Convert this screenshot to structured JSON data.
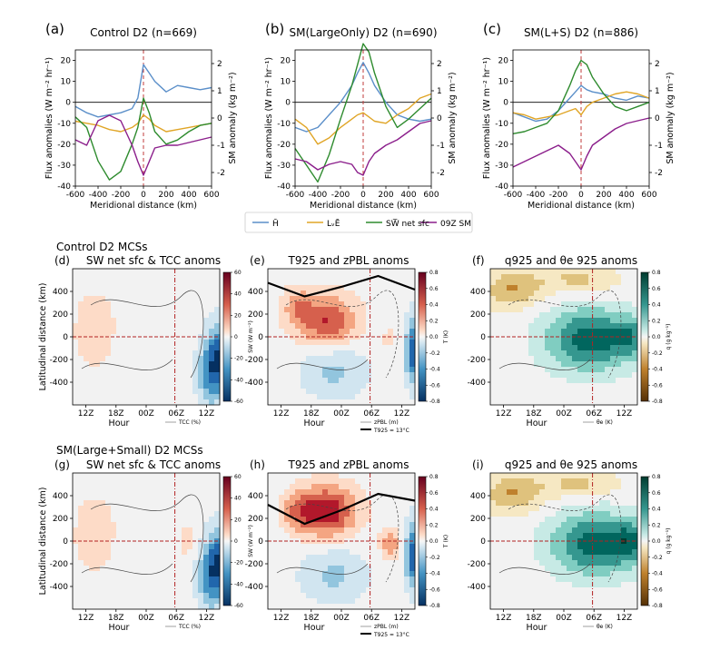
{
  "figure": {
    "row_titles": [
      "Control D2 MCSs",
      "SM(Large+Small) D2 MCSs"
    ],
    "legend": [
      {
        "label": "H̄",
        "color": "#5b8fc9"
      },
      {
        "label": "LᵥĒ",
        "color": "#e0a526"
      },
      {
        "label": "SW̅ net sfc",
        "color": "#2e8b2e"
      },
      {
        "label": "09Z SM",
        "color": "#8b1e8b"
      }
    ]
  },
  "chart_data": [
    {
      "type": "line",
      "panel": "(a)",
      "title": "Control D2 (n=669)",
      "xlabel": "Meridional distance (km)",
      "ylabel": "Flux anomalies (W m⁻² hr⁻¹)",
      "ylabel_right": "SM anomaly (kg m⁻²)",
      "xlim": [
        -600,
        600
      ],
      "ylim": [
        -40,
        25
      ],
      "ylim_right": [
        -2.5,
        2.5
      ],
      "xticks": [
        -600,
        -400,
        -200,
        0,
        200,
        400,
        600
      ],
      "yticks": [
        -40,
        -30,
        -20,
        -10,
        0,
        10,
        20
      ],
      "yticks_right": [
        -2,
        -1,
        0,
        1,
        2
      ],
      "x": [
        -600,
        -500,
        -400,
        -300,
        -200,
        -100,
        -50,
        0,
        50,
        100,
        200,
        300,
        400,
        500,
        600
      ],
      "series": [
        {
          "name": "H",
          "color": "#5b8fc9",
          "values": [
            -2,
            -5,
            -7,
            -6,
            -5,
            -3,
            2,
            18,
            14,
            10,
            5,
            8,
            7,
            6,
            7
          ]
        },
        {
          "name": "LvE",
          "color": "#e0a526",
          "values": [
            -9,
            -10,
            -11,
            -13,
            -14,
            -12,
            -10,
            -6,
            -8,
            -11,
            -14,
            -13,
            -12,
            -11,
            -10
          ]
        },
        {
          "name": "SWnet",
          "color": "#2e8b2e",
          "values": [
            -7,
            -12,
            -28,
            -37,
            -33,
            -20,
            -12,
            2,
            -5,
            -14,
            -20,
            -18,
            -14,
            -11,
            -10
          ]
        },
        {
          "name": "09Z SM",
          "color": "#8b1e8b",
          "values": [
            -0.8,
            -1.0,
            -0.1,
            0.1,
            -0.1,
            -1.0,
            -1.6,
            -2.1,
            -1.6,
            -1.1,
            -1.0,
            -1.0,
            -0.9,
            -0.8,
            -0.7
          ]
        }
      ]
    },
    {
      "type": "line",
      "panel": "(b)",
      "title": "SM(LargeOnly) D2 (n=690)",
      "xlabel": "Meridional distance (km)",
      "ylabel": "Flux anomalies (W m⁻² hr⁻¹)",
      "ylabel_right": "SM anomaly (kg m⁻²)",
      "xlim": [
        -600,
        600
      ],
      "ylim": [
        -40,
        25
      ],
      "ylim_right": [
        -2.5,
        2.5
      ],
      "xticks": [
        -600,
        -400,
        -200,
        0,
        200,
        400,
        600
      ],
      "yticks": [
        -40,
        -30,
        -20,
        -10,
        0,
        10,
        20
      ],
      "yticks_right": [
        -2,
        -1,
        0,
        1,
        2
      ],
      "x": [
        -600,
        -500,
        -400,
        -300,
        -200,
        -100,
        -50,
        0,
        50,
        100,
        200,
        300,
        400,
        500,
        600
      ],
      "series": [
        {
          "name": "H",
          "color": "#5b8fc9",
          "values": [
            -12,
            -14,
            -12,
            -6,
            0,
            8,
            14,
            19,
            14,
            8,
            0,
            -6,
            -8,
            -9,
            -8
          ]
        },
        {
          "name": "LvE",
          "color": "#e0a526",
          "values": [
            -8,
            -12,
            -20,
            -17,
            -12,
            -8,
            -6,
            -5,
            -7,
            -9,
            -10,
            -6,
            -3,
            2,
            4
          ]
        },
        {
          "name": "SWnet",
          "color": "#2e8b2e",
          "values": [
            -22,
            -30,
            -38,
            -25,
            -8,
            8,
            18,
            28,
            24,
            14,
            -2,
            -12,
            -8,
            -3,
            2
          ]
        },
        {
          "name": "09Z SM",
          "color": "#8b1e8b",
          "values": [
            -1.5,
            -1.6,
            -1.9,
            -1.7,
            -1.6,
            -1.7,
            -2.0,
            -2.1,
            -1.6,
            -1.3,
            -1.0,
            -0.8,
            -0.5,
            -0.2,
            -0.1
          ]
        }
      ]
    },
    {
      "type": "line",
      "panel": "(c)",
      "title": "SM(L+S) D2 (n=886)",
      "xlabel": "Meridional distance (km)",
      "ylabel": "Flux anomalies (W m⁻² hr⁻¹)",
      "ylabel_right": "SM anomaly (kg m⁻²)",
      "xlim": [
        -600,
        600
      ],
      "ylim": [
        -40,
        25
      ],
      "ylim_right": [
        -2.5,
        2.5
      ],
      "xticks": [
        -600,
        -400,
        -200,
        0,
        200,
        400,
        600
      ],
      "yticks": [
        -40,
        -30,
        -20,
        -10,
        0,
        10,
        20
      ],
      "yticks_right": [
        -2,
        -1,
        0,
        1,
        2
      ],
      "x": [
        -600,
        -500,
        -400,
        -300,
        -200,
        -100,
        -50,
        0,
        50,
        100,
        200,
        300,
        400,
        500,
        600
      ],
      "series": [
        {
          "name": "H",
          "color": "#5b8fc9",
          "values": [
            -5,
            -7,
            -9,
            -8,
            -4,
            2,
            5,
            8,
            6,
            5,
            4,
            2,
            1,
            3,
            2
          ]
        },
        {
          "name": "LvE",
          "color": "#e0a526",
          "values": [
            -5,
            -6,
            -8,
            -7,
            -6,
            -4,
            -3,
            -6,
            -2,
            0,
            2,
            4,
            5,
            4,
            2
          ]
        },
        {
          "name": "SWnet",
          "color": "#2e8b2e",
          "values": [
            -15,
            -14,
            -12,
            -10,
            -4,
            8,
            15,
            20,
            18,
            12,
            4,
            -2,
            -4,
            -2,
            0
          ]
        },
        {
          "name": "09Z SM",
          "color": "#8b1e8b",
          "values": [
            -1.8,
            -1.6,
            -1.4,
            -1.2,
            -1.0,
            -1.3,
            -1.6,
            -1.9,
            -1.4,
            -1.0,
            -0.7,
            -0.4,
            -0.2,
            -0.1,
            0.0
          ]
        }
      ]
    },
    {
      "type": "heatmap",
      "panel": "(d)",
      "title": "SW net sfc & TCC anoms",
      "xlabel": "Hour",
      "ylabel": "Latitudinal distance (km)",
      "xticks": [
        "12Z",
        "18Z",
        "00Z",
        "06Z",
        "12Z"
      ],
      "yticks": [
        -400,
        -200,
        0,
        200,
        400
      ],
      "ylim": [
        -600,
        600
      ],
      "xlim_hours": [
        -30,
        0
      ],
      "colorbar": {
        "label": "SW (W m⁻²)",
        "ticks": [
          -60,
          -40,
          -20,
          0,
          20,
          40,
          60
        ],
        "range": [
          -60,
          60
        ],
        "cmap": "RdBu"
      },
      "contour_legend": "TCC (%)"
    },
    {
      "type": "heatmap",
      "panel": "(e)",
      "title": "T925 and zPBL anoms",
      "xlabel": "Hour",
      "ylabel": "",
      "xticks": [
        "12Z",
        "18Z",
        "00Z",
        "06Z",
        "12Z"
      ],
      "yticks": [
        -400,
        -200,
        0,
        200,
        400
      ],
      "ylim": [
        -600,
        600
      ],
      "xlim_hours": [
        -30,
        0
      ],
      "colorbar": {
        "label": "T (K)",
        "ticks": [
          -0.8,
          -0.6,
          -0.4,
          -0.2,
          0.0,
          0.2,
          0.4,
          0.6,
          0.8
        ],
        "range": [
          -0.8,
          0.8
        ],
        "cmap": "RdBu"
      },
      "contour_legend": "zPBL (m)",
      "line_legend": "T925 = 13°C"
    },
    {
      "type": "heatmap",
      "panel": "(f)",
      "title": "q925 and θe 925 anoms",
      "xlabel": "Hour",
      "ylabel": "",
      "xticks": [
        "12Z",
        "18Z",
        "00Z",
        "06Z",
        "12Z"
      ],
      "yticks": [
        -400,
        -200,
        0,
        200,
        400
      ],
      "ylim": [
        -600,
        600
      ],
      "xlim_hours": [
        -30,
        0
      ],
      "colorbar": {
        "label": "q (g kg⁻¹)",
        "ticks": [
          -0.8,
          -0.6,
          -0.4,
          -0.2,
          0.0,
          0.2,
          0.4,
          0.6,
          0.8
        ],
        "range": [
          -0.8,
          0.8
        ],
        "cmap": "BrBG"
      },
      "contour_legend": "θe (K)"
    },
    {
      "type": "heatmap",
      "panel": "(g)",
      "title": "SW net sfc & TCC anoms",
      "xlabel": "Hour",
      "ylabel": "Latitudinal distance (km)",
      "xticks": [
        "12Z",
        "18Z",
        "00Z",
        "06Z",
        "12Z"
      ],
      "yticks": [
        -400,
        -200,
        0,
        200,
        400
      ],
      "ylim": [
        -600,
        600
      ],
      "xlim_hours": [
        -30,
        0
      ],
      "colorbar": {
        "label": "SW (W m⁻²)",
        "ticks": [
          -60,
          -40,
          -20,
          0,
          20,
          40,
          60
        ],
        "range": [
          -60,
          60
        ],
        "cmap": "RdBu"
      },
      "contour_legend": "TCC (%)"
    },
    {
      "type": "heatmap",
      "panel": "(h)",
      "title": "T925 and zPBL anoms",
      "xlabel": "Hour",
      "ylabel": "",
      "xticks": [
        "12Z",
        "18Z",
        "00Z",
        "06Z",
        "12Z"
      ],
      "yticks": [
        -400,
        -200,
        0,
        200,
        400
      ],
      "ylim": [
        -600,
        600
      ],
      "xlim_hours": [
        -30,
        0
      ],
      "colorbar": {
        "label": "T (K)",
        "ticks": [
          -0.8,
          -0.6,
          -0.4,
          -0.2,
          0.0,
          0.2,
          0.4,
          0.6,
          0.8
        ],
        "range": [
          -0.8,
          0.8
        ],
        "cmap": "RdBu"
      },
      "contour_legend": "zPBL (m)",
      "line_legend": "T925 = 13°C"
    },
    {
      "type": "heatmap",
      "panel": "(i)",
      "title": "q925 and θe 925 anoms",
      "xlabel": "Hour",
      "ylabel": "",
      "xticks": [
        "12Z",
        "18Z",
        "00Z",
        "06Z",
        "12Z"
      ],
      "yticks": [
        -400,
        -200,
        0,
        200,
        400
      ],
      "ylim": [
        -600,
        600
      ],
      "xlim_hours": [
        -30,
        0
      ],
      "colorbar": {
        "label": "q (g kg⁻¹)",
        "ticks": [
          -0.8,
          -0.6,
          -0.4,
          -0.2,
          0.0,
          0.2,
          0.4,
          0.6,
          0.8
        ],
        "range": [
          -0.8,
          0.8
        ],
        "cmap": "BrBG"
      },
      "contour_legend": "θe (K)"
    }
  ]
}
